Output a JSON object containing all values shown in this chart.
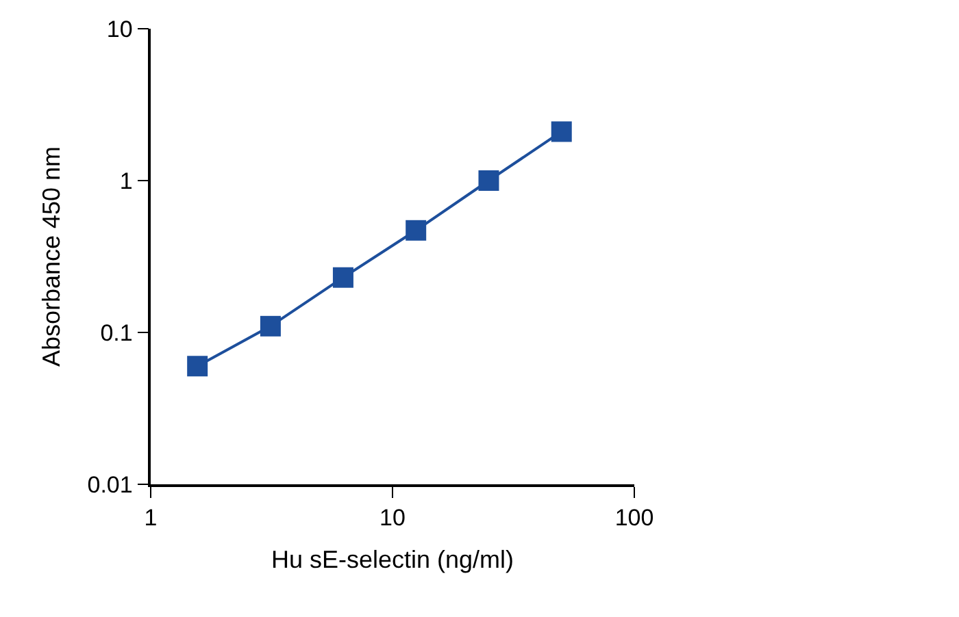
{
  "chart_data": {
    "type": "line",
    "xlabel": "Hu sE-selectin (ng/ml)",
    "ylabel": "Absorbance 450 nm",
    "x": [
      1.56,
      3.13,
      6.25,
      12.5,
      25,
      50
    ],
    "series": [
      {
        "color": "#1d4f9c",
        "values": [
          0.06,
          0.11,
          0.23,
          0.47,
          1.0,
          2.1
        ]
      }
    ],
    "log": "xy",
    "xlim": [
      1,
      100
    ],
    "xticks": [
      1,
      10,
      100
    ],
    "ylim": [
      0.01,
      10
    ],
    "yticks": [
      0.01,
      0.1,
      1,
      10
    ],
    "marker": "square",
    "line_style": "solid",
    "legend": false
  }
}
